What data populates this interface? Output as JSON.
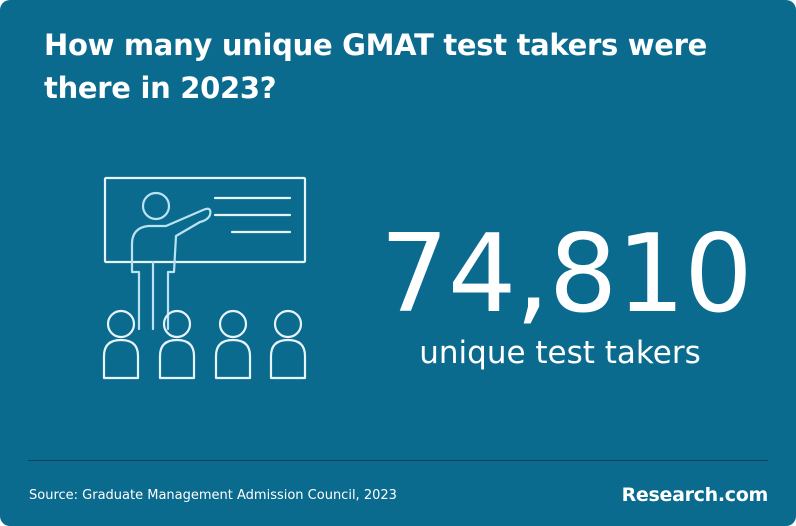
{
  "header": {
    "title_line1": "How many unique GMAT test takers were",
    "title_line2": "there in 2023?"
  },
  "stat": {
    "value": "74,810",
    "label": "unique test takers"
  },
  "footer": {
    "source": "Source: Graduate Management Admission Council, 2023",
    "brand": "Research.com"
  }
}
